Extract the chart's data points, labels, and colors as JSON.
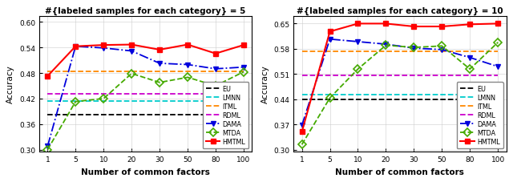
{
  "x_positions": [
    0,
    1,
    2,
    3,
    4,
    5,
    6,
    7
  ],
  "x_labels": [
    "1",
    "5",
    "10",
    "20",
    "30",
    "50",
    "80",
    "100"
  ],
  "plot1": {
    "title": "#{labeled samples for each category} = 5",
    "ylim": [
      0.295,
      0.615
    ],
    "yticks": [
      0.3,
      0.36,
      0.42,
      0.48,
      0.54,
      0.6
    ],
    "EU": [
      0.383,
      0.383,
      0.383,
      0.383,
      0.383,
      0.383,
      0.383,
      0.383
    ],
    "LMNN": [
      0.415,
      0.415,
      0.415,
      0.415,
      0.415,
      0.415,
      0.415,
      0.415
    ],
    "ITML": [
      0.484,
      0.484,
      0.484,
      0.484,
      0.484,
      0.484,
      0.484,
      0.484
    ],
    "RDML": [
      0.432,
      0.432,
      0.432,
      0.432,
      0.432,
      0.432,
      0.432,
      0.432
    ],
    "DAMA": [
      0.308,
      0.543,
      0.539,
      0.532,
      0.503,
      0.5,
      0.49,
      0.494
    ],
    "MTDA": [
      0.3,
      0.413,
      0.42,
      0.479,
      0.458,
      0.47,
      0.45,
      0.483
    ],
    "HMTML": [
      0.473,
      0.543,
      0.546,
      0.547,
      0.535,
      0.547,
      0.526,
      0.546
    ]
  },
  "plot2": {
    "title": "#{labeled samples for each category} = 10",
    "ylim": [
      0.295,
      0.672
    ],
    "yticks": [
      0.3,
      0.37,
      0.44,
      0.51,
      0.58,
      0.65
    ],
    "EU": [
      0.44,
      0.44,
      0.44,
      0.44,
      0.44,
      0.44,
      0.44,
      0.44
    ],
    "LMNN": [
      0.453,
      0.453,
      0.453,
      0.453,
      0.453,
      0.453,
      0.453,
      0.453
    ],
    "ITML": [
      0.574,
      0.574,
      0.574,
      0.574,
      0.574,
      0.574,
      0.574,
      0.574
    ],
    "RDML": [
      0.507,
      0.507,
      0.507,
      0.507,
      0.507,
      0.507,
      0.507,
      0.507
    ],
    "DAMA": [
      0.368,
      0.607,
      0.6,
      0.593,
      0.582,
      0.578,
      0.556,
      0.531
    ],
    "MTDA": [
      0.315,
      0.444,
      0.524,
      0.59,
      0.584,
      0.588,
      0.524,
      0.598
    ],
    "HMTML": [
      0.35,
      0.628,
      0.65,
      0.65,
      0.642,
      0.642,
      0.648,
      0.65
    ]
  },
  "colors": {
    "EU": "#000000",
    "LMNN": "#00cccc",
    "ITML": "#ff8800",
    "RDML": "#cc00cc",
    "DAMA": "#0000dd",
    "MTDA": "#44aa00",
    "HMTML": "#ff0000"
  },
  "xlabel": "Number of common factors",
  "ylabel": "Accuracy"
}
